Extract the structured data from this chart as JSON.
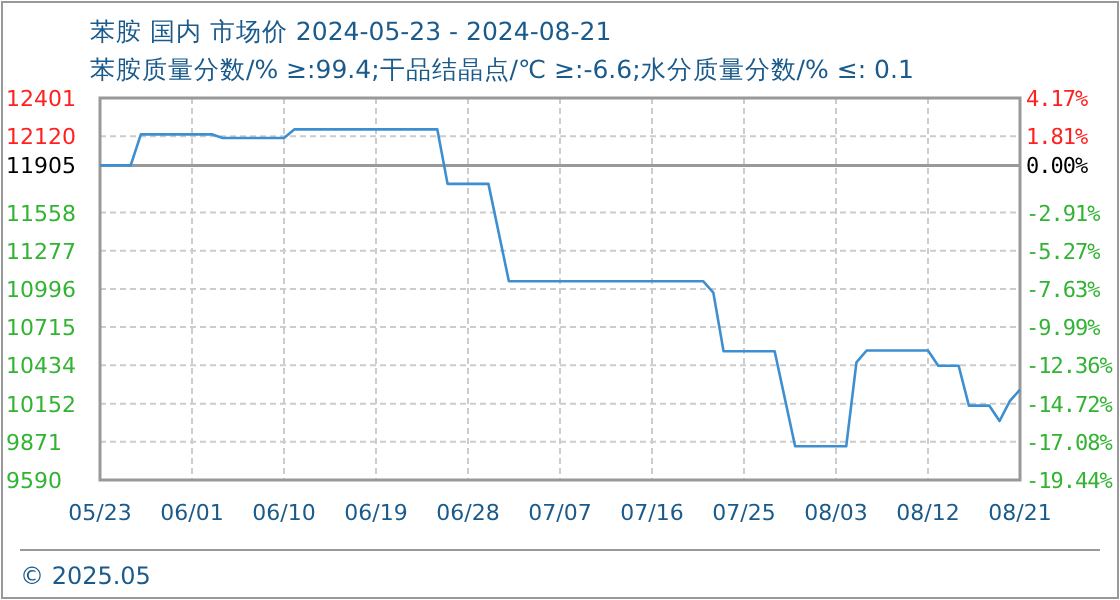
{
  "chart_data": {
    "type": "line",
    "title": "苯胺 国内 市场价 2024-05-23 - 2024-08-21",
    "subtitle": "苯胺质量分数/% ≥:99.4;干品结晶点/℃  ≥:-6.6;水分质量分数/%  ≤: 0.1",
    "x": [
      "2024-05-23",
      "2024-05-26",
      "2024-05-27",
      "2024-06-03",
      "2024-06-04",
      "2024-06-10",
      "2024-06-11",
      "2024-06-25",
      "2024-06-26",
      "2024-06-30",
      "2024-07-02",
      "2024-07-21",
      "2024-07-22",
      "2024-07-23",
      "2024-07-28",
      "2024-07-30",
      "2024-08-04",
      "2024-08-05",
      "2024-08-06",
      "2024-08-12",
      "2024-08-13",
      "2024-08-15",
      "2024-08-16",
      "2024-08-18",
      "2024-08-19",
      "2024-08-20",
      "2024-08-21"
    ],
    "series": [
      {
        "color": "#3d8fd1",
        "values": [
          11905,
          11905,
          12133,
          12133,
          12107,
          12107,
          12170,
          12170,
          11769,
          11769,
          11053,
          11053,
          10969,
          10538,
          10538,
          9838,
          9838,
          10455,
          10543,
          10543,
          10431,
          10431,
          10137,
          10137,
          10024,
          10171,
          10255
        ]
      }
    ],
    "xlim": [
      "2024-05-23",
      "2024-08-21"
    ],
    "xticks": [
      {
        "value": "2024-05-23",
        "label": "05/23"
      },
      {
        "value": "2024-06-01",
        "label": "06/01"
      },
      {
        "value": "2024-06-10",
        "label": "06/10"
      },
      {
        "value": "2024-06-19",
        "label": "06/19"
      },
      {
        "value": "2024-06-28",
        "label": "06/28"
      },
      {
        "value": "2024-07-07",
        "label": "07/07"
      },
      {
        "value": "2024-07-16",
        "label": "07/16"
      },
      {
        "value": "2024-07-25",
        "label": "07/25"
      },
      {
        "value": "2024-08-03",
        "label": "08/03"
      },
      {
        "value": "2024-08-12",
        "label": "08/12"
      },
      {
        "value": "2024-08-21",
        "label": "08/21"
      }
    ],
    "ylim": [
      9590,
      12401
    ],
    "yticks": [
      9590,
      9871,
      10152,
      10434,
      10715,
      10996,
      11277,
      11558,
      11905,
      12120,
      12401
    ],
    "y2lim": [
      -19.44,
      4.17
    ],
    "y2ticks": [
      {
        "value": -19.44,
        "label": "-19.44%"
      },
      {
        "value": -17.08,
        "label": "-17.08%"
      },
      {
        "value": -14.72,
        "label": "-14.72%"
      },
      {
        "value": -12.36,
        "label": "-12.36%"
      },
      {
        "value": -9.99,
        "label": "-9.99%"
      },
      {
        "value": -7.63,
        "label": "-7.63%"
      },
      {
        "value": -5.27,
        "label": "-5.27%"
      },
      {
        "value": -2.91,
        "label": "-2.91%"
      },
      {
        "value": 0,
        "label": "0.00%"
      },
      {
        "value": 1.81,
        "label": "1.81%"
      },
      {
        "value": 4.17,
        "label": "4.17%"
      }
    ],
    "ref_lines": [
      {
        "axis": "y",
        "value": 11905,
        "color": "#999999"
      }
    ],
    "grid": true,
    "marker": "none",
    "line_style": "solid",
    "annotations": [
      "© 2025.05"
    ]
  }
}
